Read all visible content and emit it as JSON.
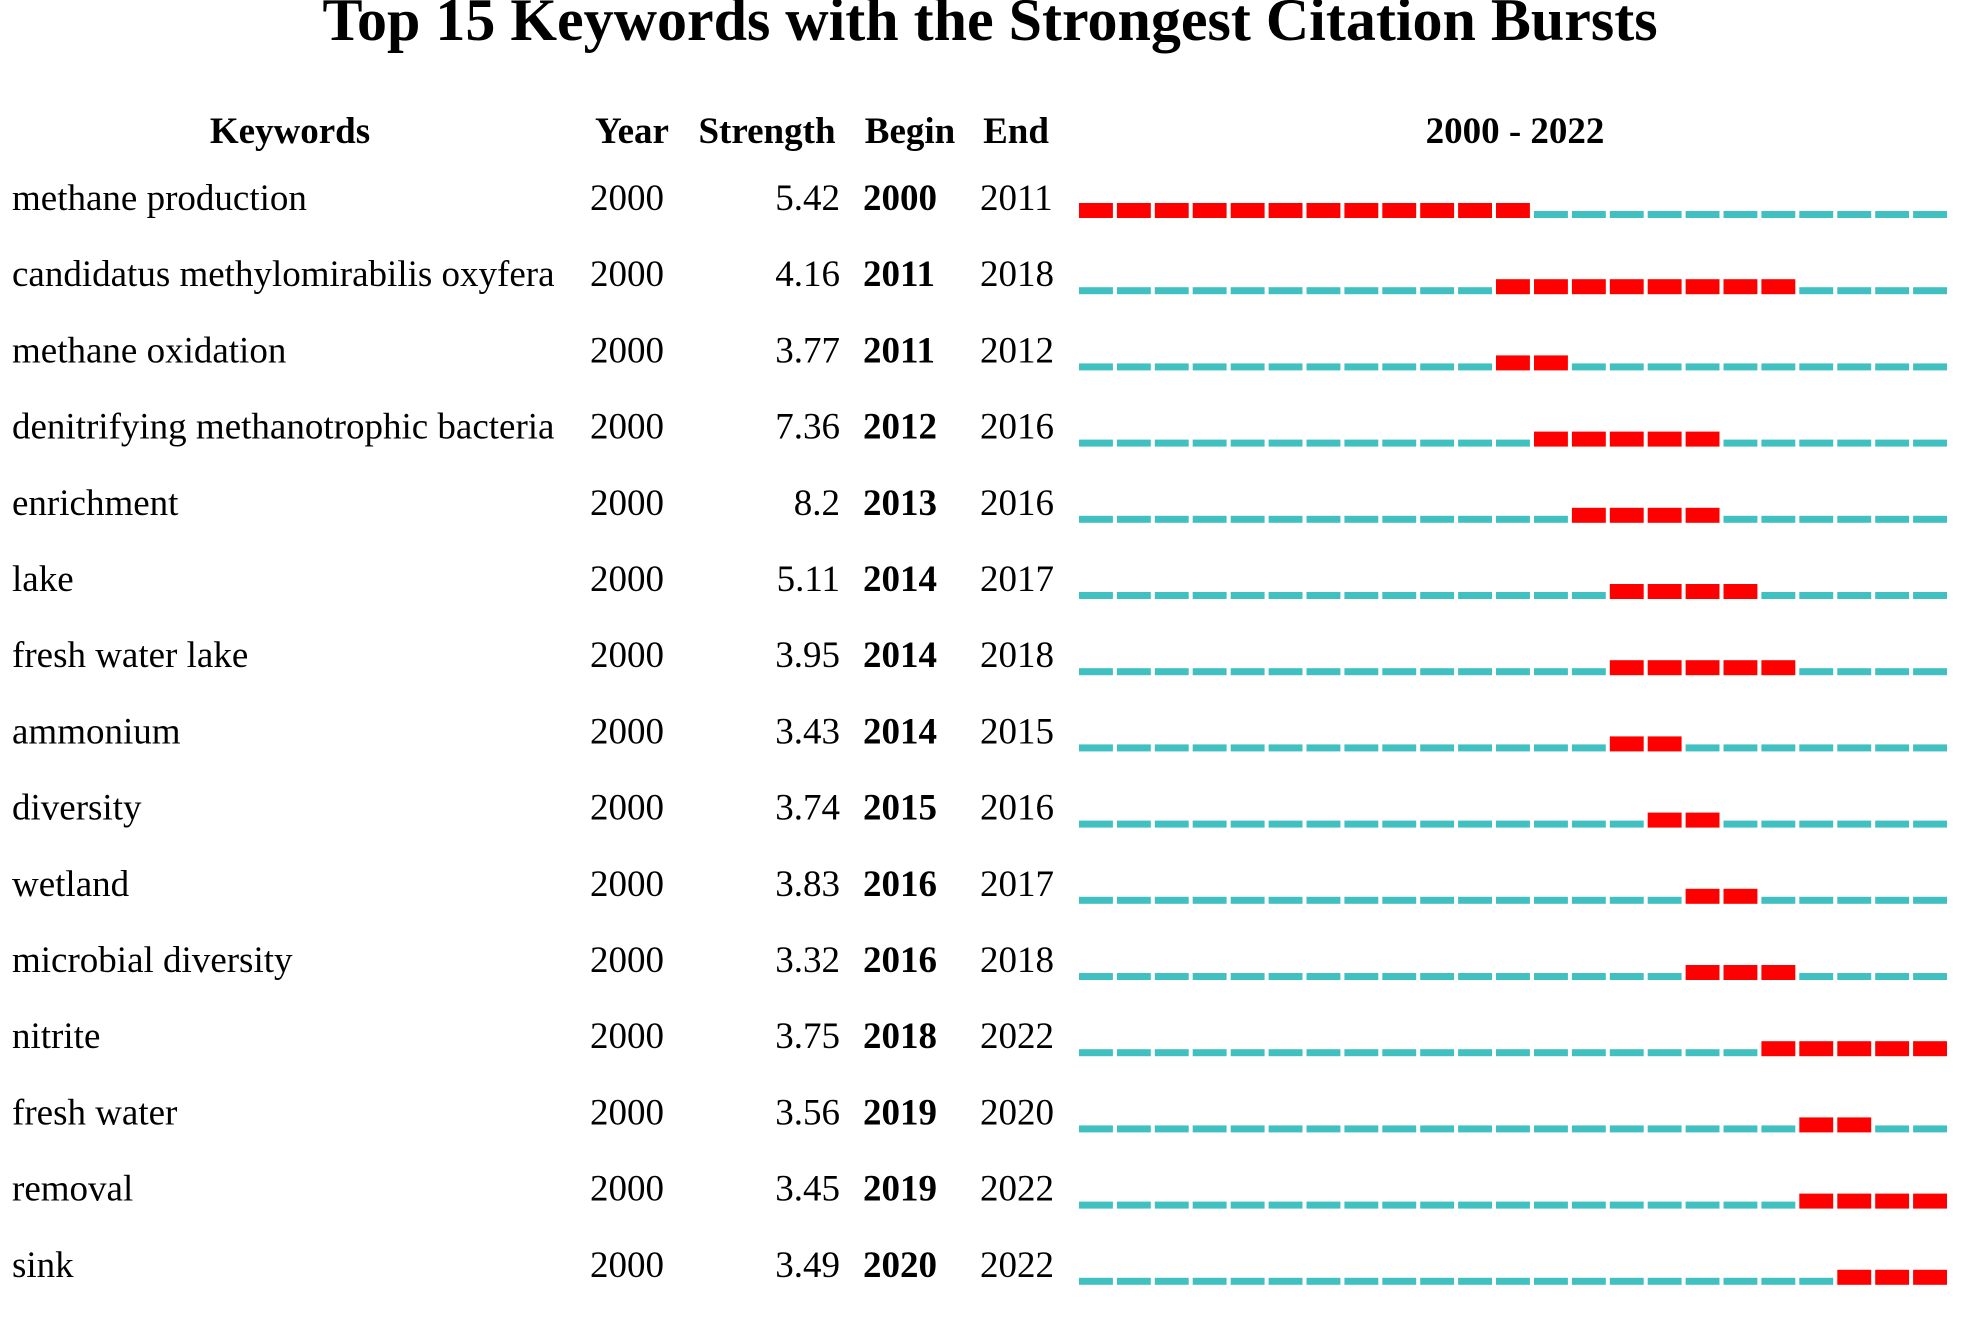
{
  "chart_data": {
    "type": "table",
    "title": "Top 15 Keywords with the Strongest Citation Bursts",
    "columns": [
      "Keywords",
      "Year",
      "Strength",
      "Begin",
      "End"
    ],
    "range_label": "2000 - 2022",
    "range": [
      2000,
      2022
    ],
    "colors": {
      "burst": "#ff0000",
      "baseline": "#40c0c0"
    },
    "rows": [
      {
        "keyword": "methane production",
        "year": "2000",
        "strength": "5.42",
        "begin": "2000",
        "end": "2011"
      },
      {
        "keyword": "candidatus methylomirabilis oxyfera",
        "year": "2000",
        "strength": "4.16",
        "begin": "2011",
        "end": "2018"
      },
      {
        "keyword": "methane oxidation",
        "year": "2000",
        "strength": "3.77",
        "begin": "2011",
        "end": "2012"
      },
      {
        "keyword": "denitrifying methanotrophic bacteria",
        "year": "2000",
        "strength": "7.36",
        "begin": "2012",
        "end": "2016"
      },
      {
        "keyword": "enrichment",
        "year": "2000",
        "strength": "8.2",
        "begin": "2013",
        "end": "2016"
      },
      {
        "keyword": "lake",
        "year": "2000",
        "strength": "5.11",
        "begin": "2014",
        "end": "2017"
      },
      {
        "keyword": "fresh water lake",
        "year": "2000",
        "strength": "3.95",
        "begin": "2014",
        "end": "2018"
      },
      {
        "keyword": "ammonium",
        "year": "2000",
        "strength": "3.43",
        "begin": "2014",
        "end": "2015"
      },
      {
        "keyword": "diversity",
        "year": "2000",
        "strength": "3.74",
        "begin": "2015",
        "end": "2016"
      },
      {
        "keyword": "wetland",
        "year": "2000",
        "strength": "3.83",
        "begin": "2016",
        "end": "2017"
      },
      {
        "keyword": "microbial diversity",
        "year": "2000",
        "strength": "3.32",
        "begin": "2016",
        "end": "2018"
      },
      {
        "keyword": "nitrite",
        "year": "2000",
        "strength": "3.75",
        "begin": "2018",
        "end": "2022"
      },
      {
        "keyword": "fresh water",
        "year": "2000",
        "strength": "3.56",
        "begin": "2019",
        "end": "2020"
      },
      {
        "keyword": "removal",
        "year": "2000",
        "strength": "3.45",
        "begin": "2019",
        "end": "2022"
      },
      {
        "keyword": "sink",
        "year": "2000",
        "strength": "3.49",
        "begin": "2020",
        "end": "2022"
      }
    ]
  }
}
